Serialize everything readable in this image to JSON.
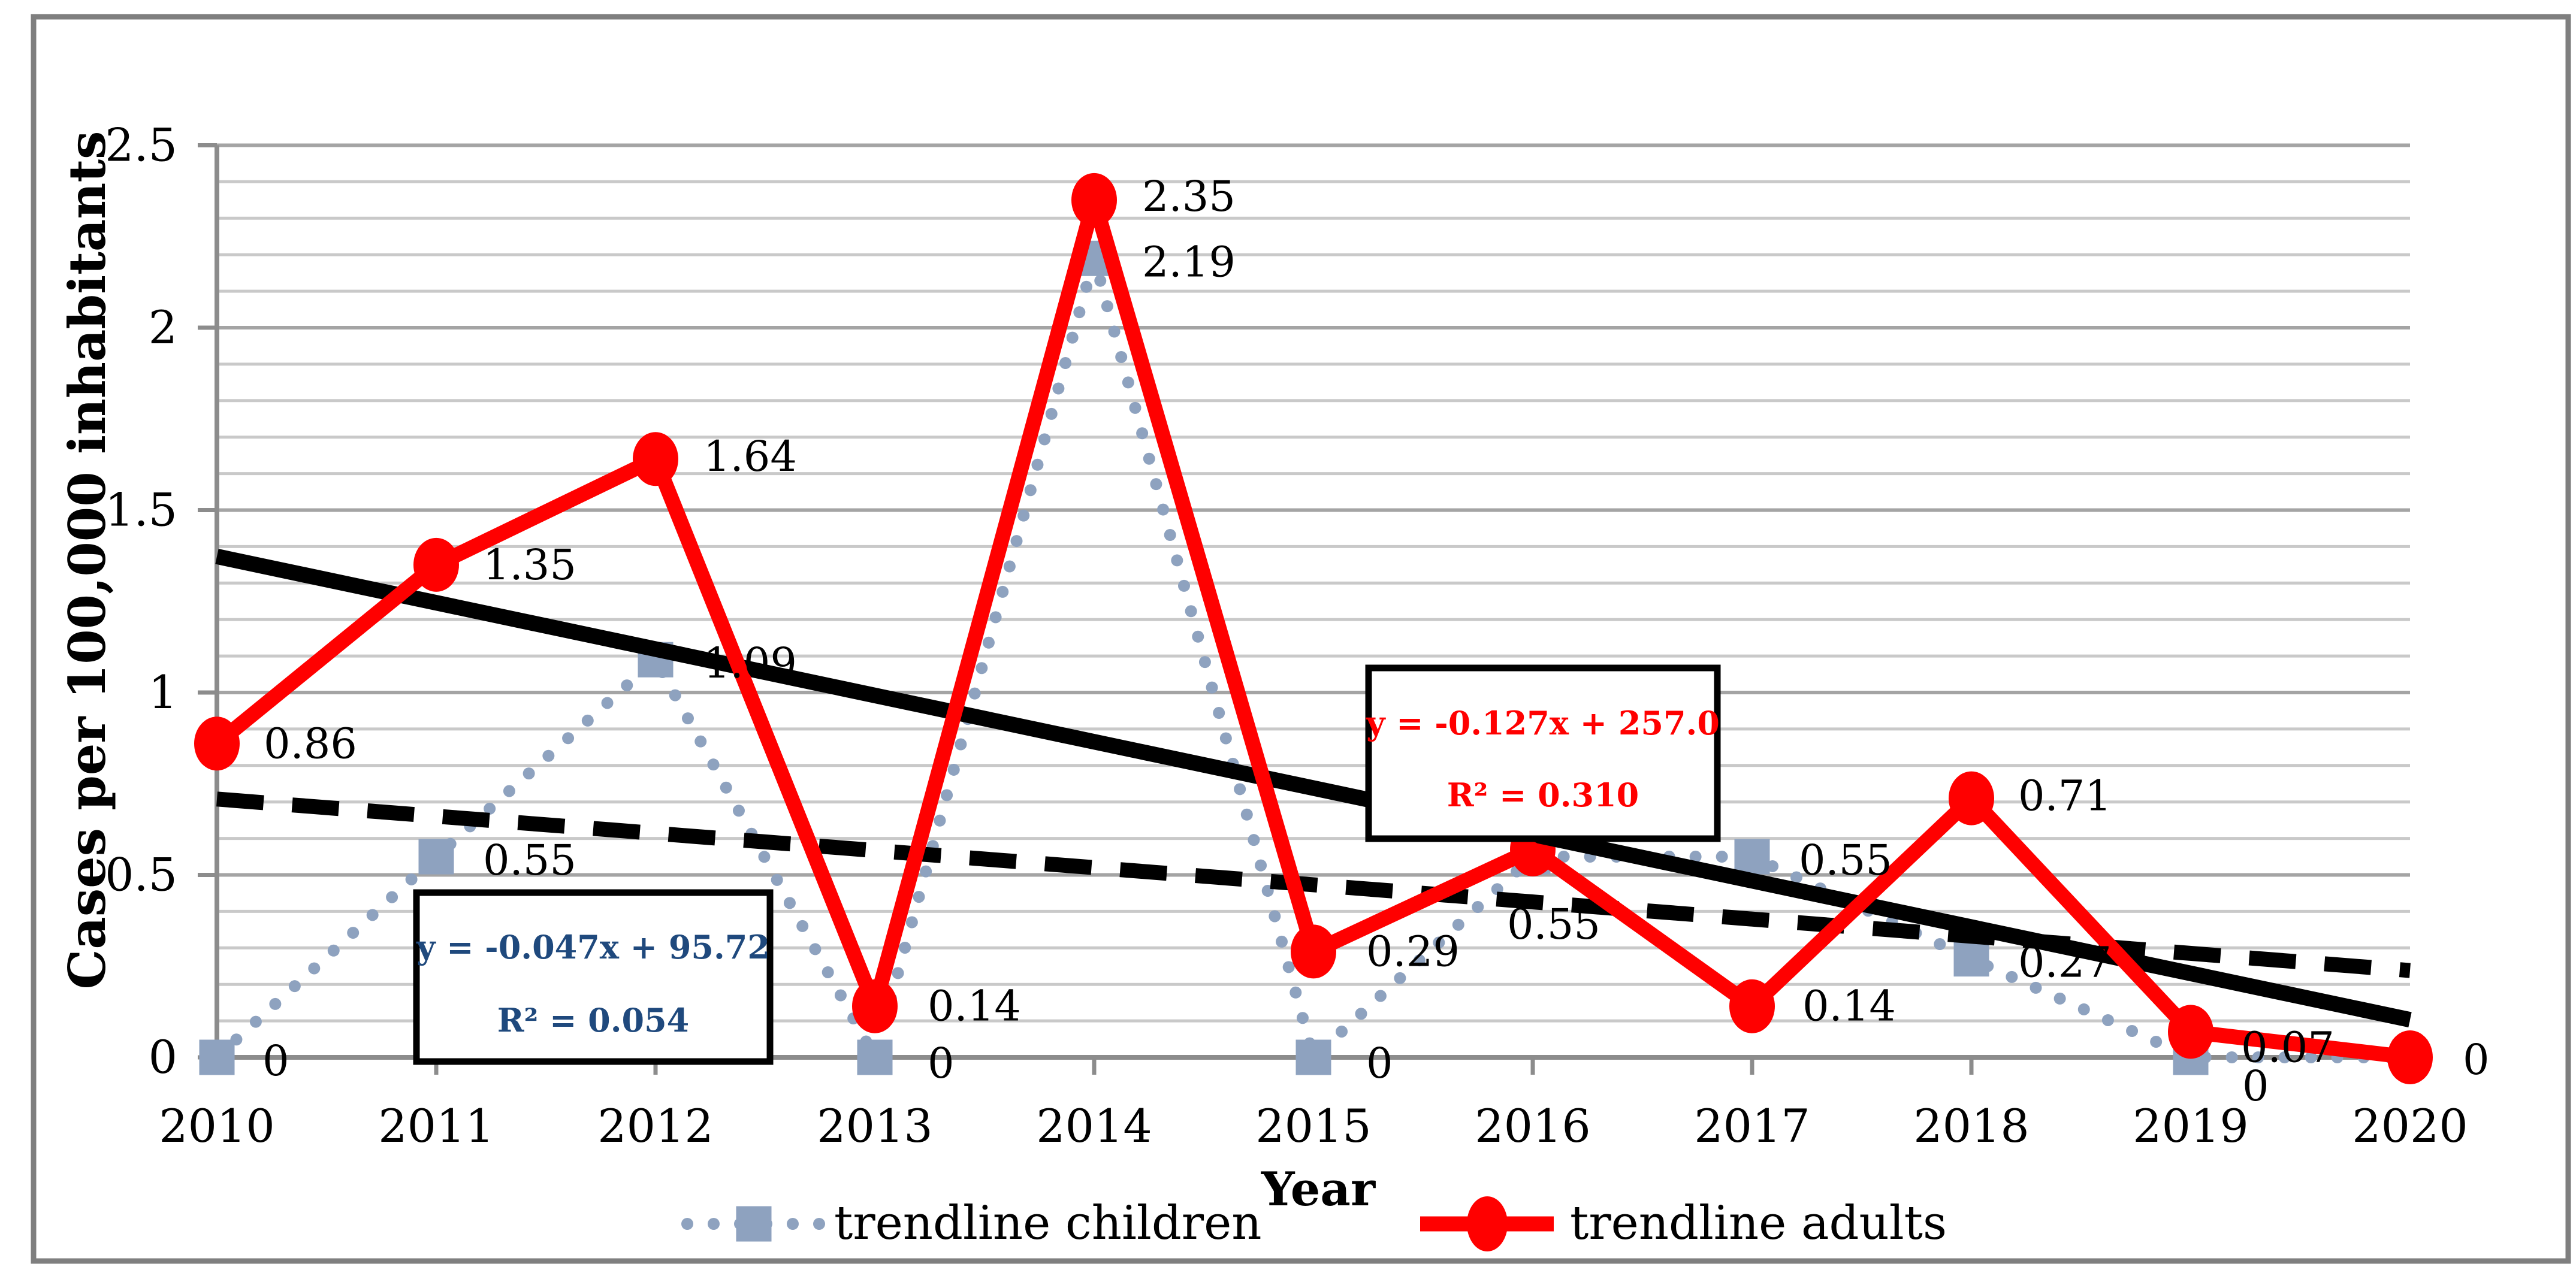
{
  "figure": {
    "background": "#ffffff",
    "border_color": "#7f7f7f"
  },
  "chart_data": {
    "type": "line",
    "title": "",
    "xlabel": "Year",
    "ylabel": "Cases per 100,000 inhabitants",
    "ylim": [
      0,
      2.5
    ],
    "y_major_step": 0.5,
    "y_minor_step": 0.1,
    "grid": "horizontal major and minor, on",
    "legend_position": "bottom-center",
    "categories": [
      "2010",
      "2011",
      "2012",
      "2013",
      "2014",
      "2015",
      "2016",
      "2017",
      "2018",
      "2019",
      "2020"
    ],
    "y_tick_labels": [
      "0",
      "0.5",
      "1",
      "1.5",
      "2",
      "2.5"
    ],
    "series": [
      {
        "name": "trendline children",
        "type": "line",
        "line_style": "dotted",
        "marker": "square",
        "color": "#8EA2BF",
        "values": [
          0,
          0.55,
          1.09,
          0,
          2.19,
          0,
          0.55,
          0.55,
          0.27,
          0,
          0
        ],
        "data_labels": [
          "0",
          "0.55",
          "1.09",
          "0",
          "2.19",
          "0",
          "0.55",
          "0.55",
          "0.27",
          "0",
          ""
        ]
      },
      {
        "name": "trendline adults",
        "type": "line",
        "line_style": "solid",
        "marker": "circle",
        "color": "#FF0000",
        "marker_accent": "#E8A33D",
        "values": [
          0.86,
          1.35,
          1.64,
          0.14,
          2.35,
          0.29,
          0.57,
          0.14,
          0.71,
          0.07,
          0
        ],
        "data_labels": [
          "0.86",
          "1.35",
          "1.64",
          "0.14",
          "2.35",
          "0.29",
          "0.57",
          "0.14",
          "0.71",
          "0.07",
          "0"
        ]
      }
    ],
    "trendlines": [
      {
        "series": "trendline children",
        "style": "dashed",
        "color": "#000000",
        "y_start": 0.708,
        "y_end": 0.238,
        "equation": "y = -0.047x + 95.72",
        "r_squared": "R² = 0.054",
        "label_color": "#1F497D"
      },
      {
        "series": "trendline adults",
        "style": "solid",
        "color": "#000000",
        "y_start": 1.373,
        "y_end": 0.103,
        "equation": "y = -0.127x + 257.0",
        "r_squared": "R² = 0.310",
        "label_color": "#FF0000"
      }
    ],
    "colors": {
      "minor_grid": "#C9C9C9",
      "major_grid": "#A4A4A4",
      "axis": "#8C8C8C",
      "label_text": "#000000"
    }
  },
  "legend": {
    "items": [
      {
        "label": "trendline children"
      },
      {
        "label": "trendline adults"
      }
    ]
  }
}
